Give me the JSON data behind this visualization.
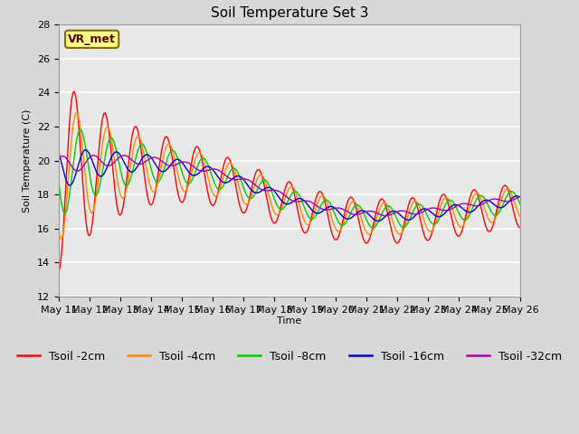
{
  "title": "Soil Temperature Set 3",
  "xlabel": "Time",
  "ylabel": "Soil Temperature (C)",
  "ylim": [
    12,
    28
  ],
  "yticks": [
    12,
    14,
    16,
    18,
    20,
    22,
    24,
    26,
    28
  ],
  "xtick_labels": [
    "May 11",
    "May 12",
    "May 13",
    "May 14",
    "May 15",
    "May 16",
    "May 17",
    "May 18",
    "May 19",
    "May 20",
    "May 21",
    "May 22",
    "May 23",
    "May 24",
    "May 25",
    "May 26"
  ],
  "legend_entries": [
    "Tsoil -2cm",
    "Tsoil -4cm",
    "Tsoil -8cm",
    "Tsoil -16cm",
    "Tsoil -32cm"
  ],
  "line_colors": [
    "#ff0000",
    "#ff8800",
    "#00cc00",
    "#0000cc",
    "#aa00aa"
  ],
  "annotation_text": "VR_met",
  "bg_color": "#e8e8e8",
  "grid_color": "#ffffff",
  "title_fontsize": 11,
  "axis_fontsize": 8,
  "legend_fontsize": 9
}
